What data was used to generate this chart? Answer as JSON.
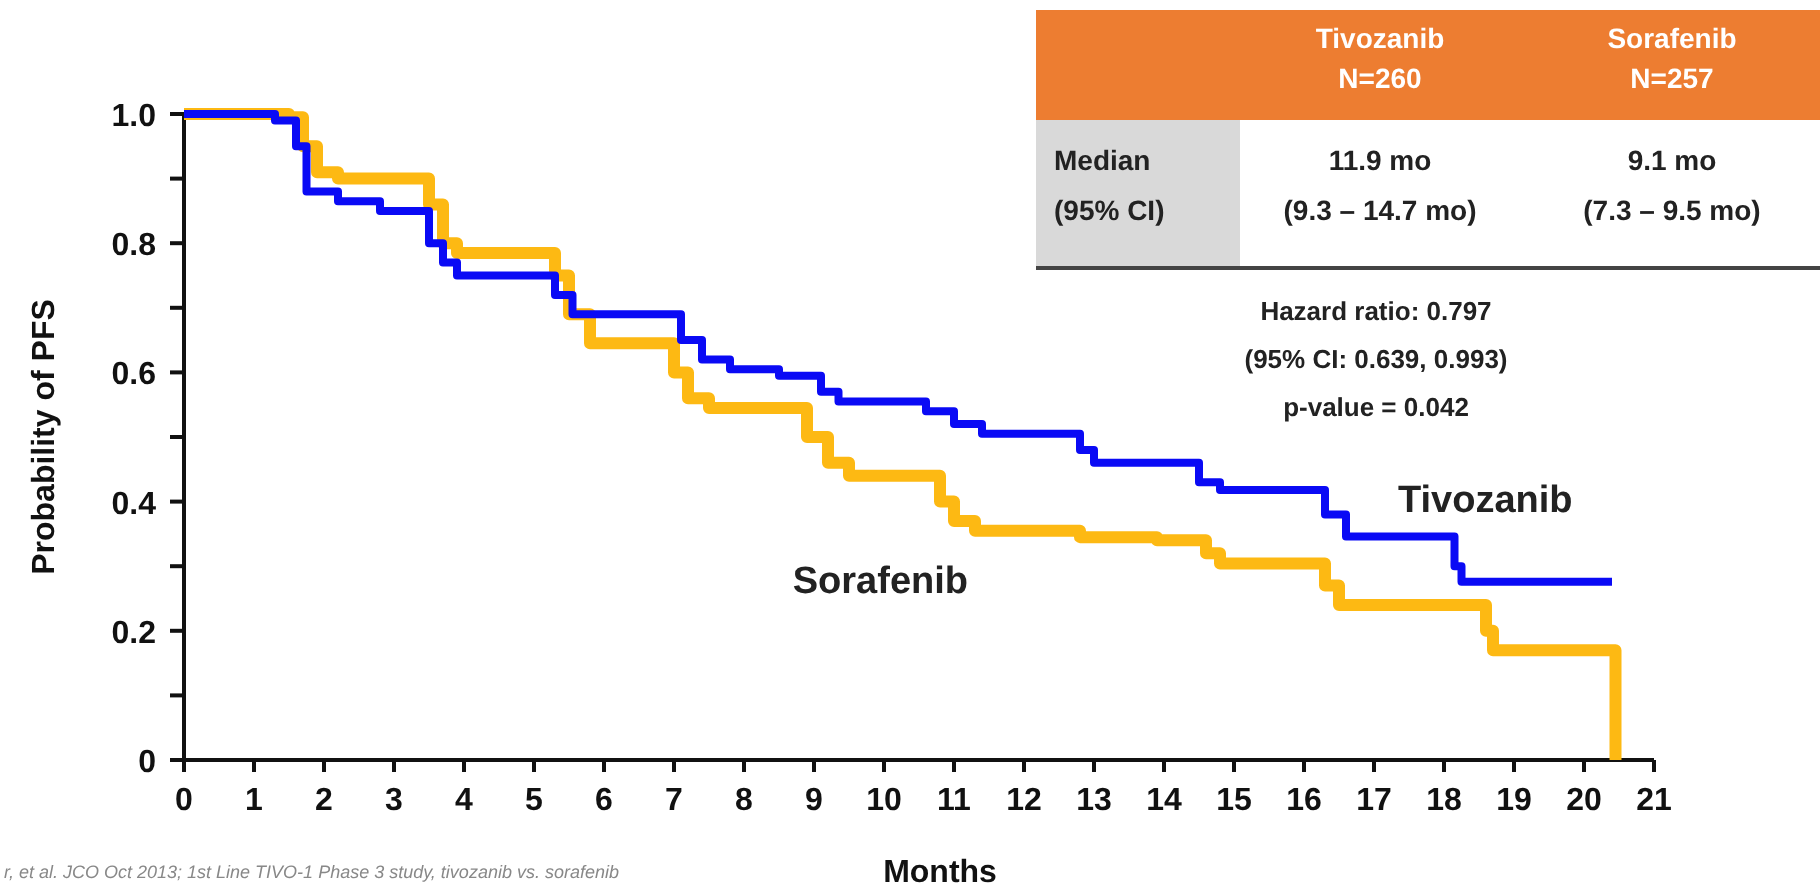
{
  "chart_data": {
    "type": "step",
    "xlabel": "Months",
    "ylabel": "Probability of PFS",
    "xlim": [
      0,
      21
    ],
    "ylim": [
      0,
      1
    ],
    "xticks": [
      0,
      1,
      2,
      3,
      4,
      5,
      6,
      7,
      8,
      9,
      10,
      11,
      12,
      13,
      14,
      15,
      16,
      17,
      18,
      19,
      20,
      21
    ],
    "yticks": [
      0,
      {
        "value": 0.1,
        "label": null
      },
      0.2,
      {
        "value": 0.3,
        "label": null
      },
      0.4,
      {
        "value": 0.5,
        "label": null
      },
      0.6,
      {
        "value": 0.7,
        "label": null
      },
      0.8,
      {
        "value": 0.9,
        "label": null
      },
      {
        "value": 1,
        "label": "1.0"
      }
    ],
    "grid": false,
    "legend": false,
    "marker": "none",
    "line_style": "solid",
    "series": [
      {
        "name": "Tivozanib",
        "color": "#0a0af5",
        "x": [
          0,
          1.3,
          1.6,
          1.75,
          2.2,
          2.8,
          3.5,
          3.7,
          3.9,
          5.3,
          5.55,
          7.1,
          7.4,
          7.8,
          8.5,
          9.1,
          9.35,
          10.6,
          11.0,
          11.4,
          12.8,
          13.0,
          14.5,
          14.8,
          16.3,
          16.6,
          18.15,
          18.25,
          20.4
        ],
        "values": [
          1.0,
          0.99,
          0.95,
          0.88,
          0.865,
          0.85,
          0.8,
          0.77,
          0.75,
          0.72,
          0.69,
          0.65,
          0.62,
          0.605,
          0.595,
          0.57,
          0.555,
          0.54,
          0.52,
          0.505,
          0.48,
          0.46,
          0.43,
          0.418,
          0.38,
          0.346,
          0.3,
          0.276,
          0.276
        ]
      },
      {
        "name": "Sorafenib",
        "color": "#fdb913",
        "x": [
          0,
          1.5,
          1.7,
          1.9,
          2.2,
          3.5,
          3.7,
          3.9,
          5.3,
          5.5,
          5.8,
          7.0,
          7.2,
          7.5,
          8.9,
          9.2,
          9.5,
          10.8,
          11.0,
          11.3,
          12.8,
          13.9,
          14.6,
          14.8,
          16.3,
          16.5,
          18.6,
          18.7,
          20.4,
          20.45
        ],
        "values": [
          1.0,
          0.995,
          0.95,
          0.91,
          0.9,
          0.86,
          0.8,
          0.785,
          0.75,
          0.69,
          0.645,
          0.6,
          0.56,
          0.545,
          0.5,
          0.46,
          0.44,
          0.4,
          0.37,
          0.355,
          0.345,
          0.34,
          0.32,
          0.304,
          0.27,
          0.24,
          0.2,
          0.17,
          0.17,
          0
        ]
      }
    ],
    "annotations": [
      "Tivozanib",
      "N=260",
      "Sorafenib",
      "N=257",
      "Median",
      "(95% CI)",
      "11.9 mo",
      "(9.3 – 14.7 mo)",
      "9.1 mo",
      "(7.3 – 9.5 mo)",
      "Hazard ratio: 0.797",
      "(95% CI: 0.639, 0.993)",
      "p-value = 0.042",
      "r, et al. JCO Oct 2013; 1st Line TIVO-1 Phase 3 study, tivozanib vs. sorafenib"
    ]
  }
}
